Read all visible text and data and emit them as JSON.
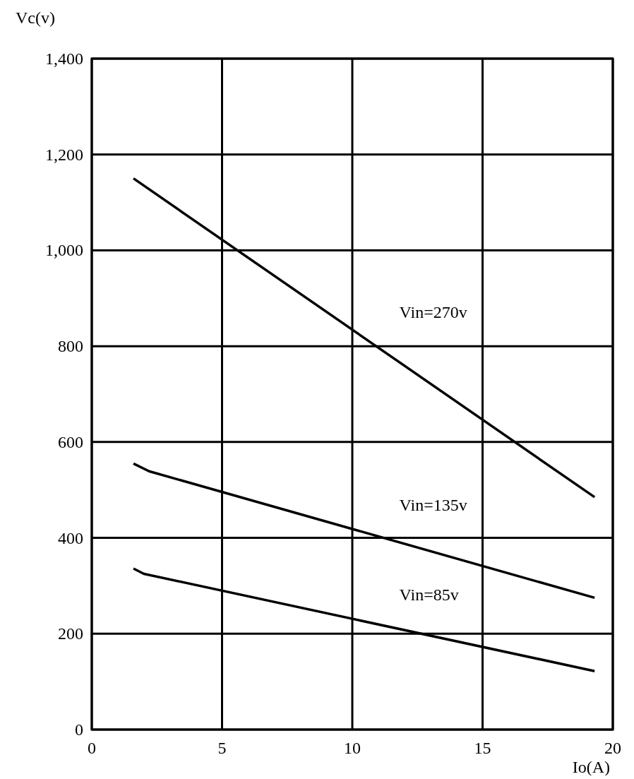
{
  "chart_data": {
    "type": "line",
    "xlabel": "Io(A)",
    "ylabel": "Vc(v)",
    "xlim": [
      0,
      20
    ],
    "ylim": [
      0,
      1400
    ],
    "xticks": [
      0,
      5,
      10,
      15,
      20
    ],
    "yticks": [
      0,
      200,
      400,
      600,
      800,
      {
        "value": 1000,
        "label": "1,000"
      },
      {
        "value": 1200,
        "label": "1,200"
      },
      {
        "value": 1400,
        "label": "1,400"
      }
    ],
    "grid": true,
    "line_style": "solid",
    "series": [
      {
        "name": "Vin=270v",
        "color": "#000000",
        "x": [
          1.6,
          19.3
        ],
        "values": [
          1150,
          485
        ]
      },
      {
        "name": "Vin=135v",
        "color": "#000000",
        "x": [
          1.6,
          2.2,
          19.3
        ],
        "values": [
          555,
          539,
          275
        ]
      },
      {
        "name": "Vin=85v",
        "color": "#000000",
        "x": [
          1.6,
          2.0,
          19.3
        ],
        "values": [
          336,
          325,
          122
        ]
      }
    ]
  }
}
